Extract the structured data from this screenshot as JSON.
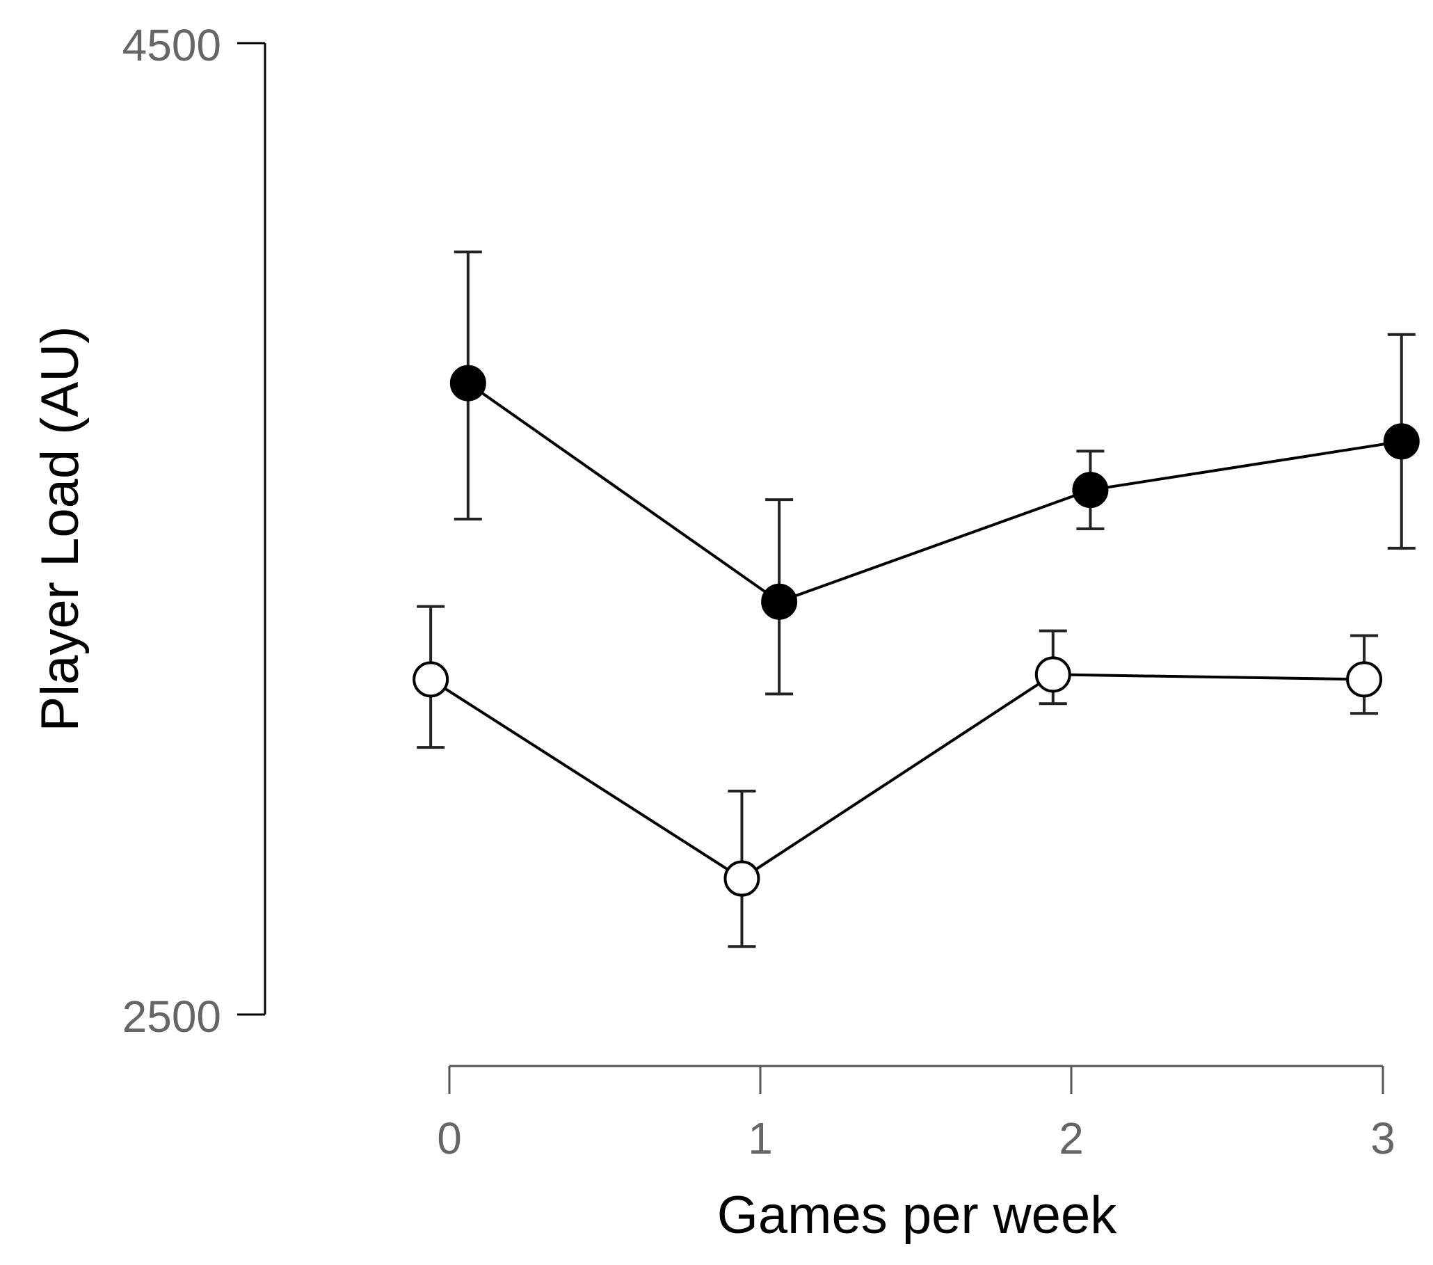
{
  "chart_data": {
    "type": "line",
    "title": "",
    "xlabel": "Games per week",
    "ylabel": "Player Load (AU)",
    "ylim": [
      2500,
      4500
    ],
    "y_ticks": [
      "4500",
      "2500"
    ],
    "x_ticks": [
      "0",
      "1",
      "2",
      "3"
    ],
    "x": [
      0,
      1,
      2,
      3
    ],
    "grid": false,
    "series": [
      {
        "marker": "filled-circle",
        "color": "#000000",
        "x": [
          0.06,
          1.06,
          2.06,
          3.06
        ],
        "values": [
          3800,
          3350,
          3580,
          3680
        ],
        "error_low": [
          3520,
          3160,
          3500,
          3460
        ],
        "error_high": [
          4070,
          3560,
          3660,
          3900
        ]
      },
      {
        "marker": "open-circle",
        "color": "#000000",
        "x": [
          -0.06,
          0.94,
          1.94,
          2.94
        ],
        "values": [
          3190,
          2780,
          3200,
          3190
        ],
        "error_low": [
          3050,
          2640,
          3140,
          3120
        ],
        "error_high": [
          3340,
          2960,
          3290,
          3280
        ]
      }
    ]
  }
}
